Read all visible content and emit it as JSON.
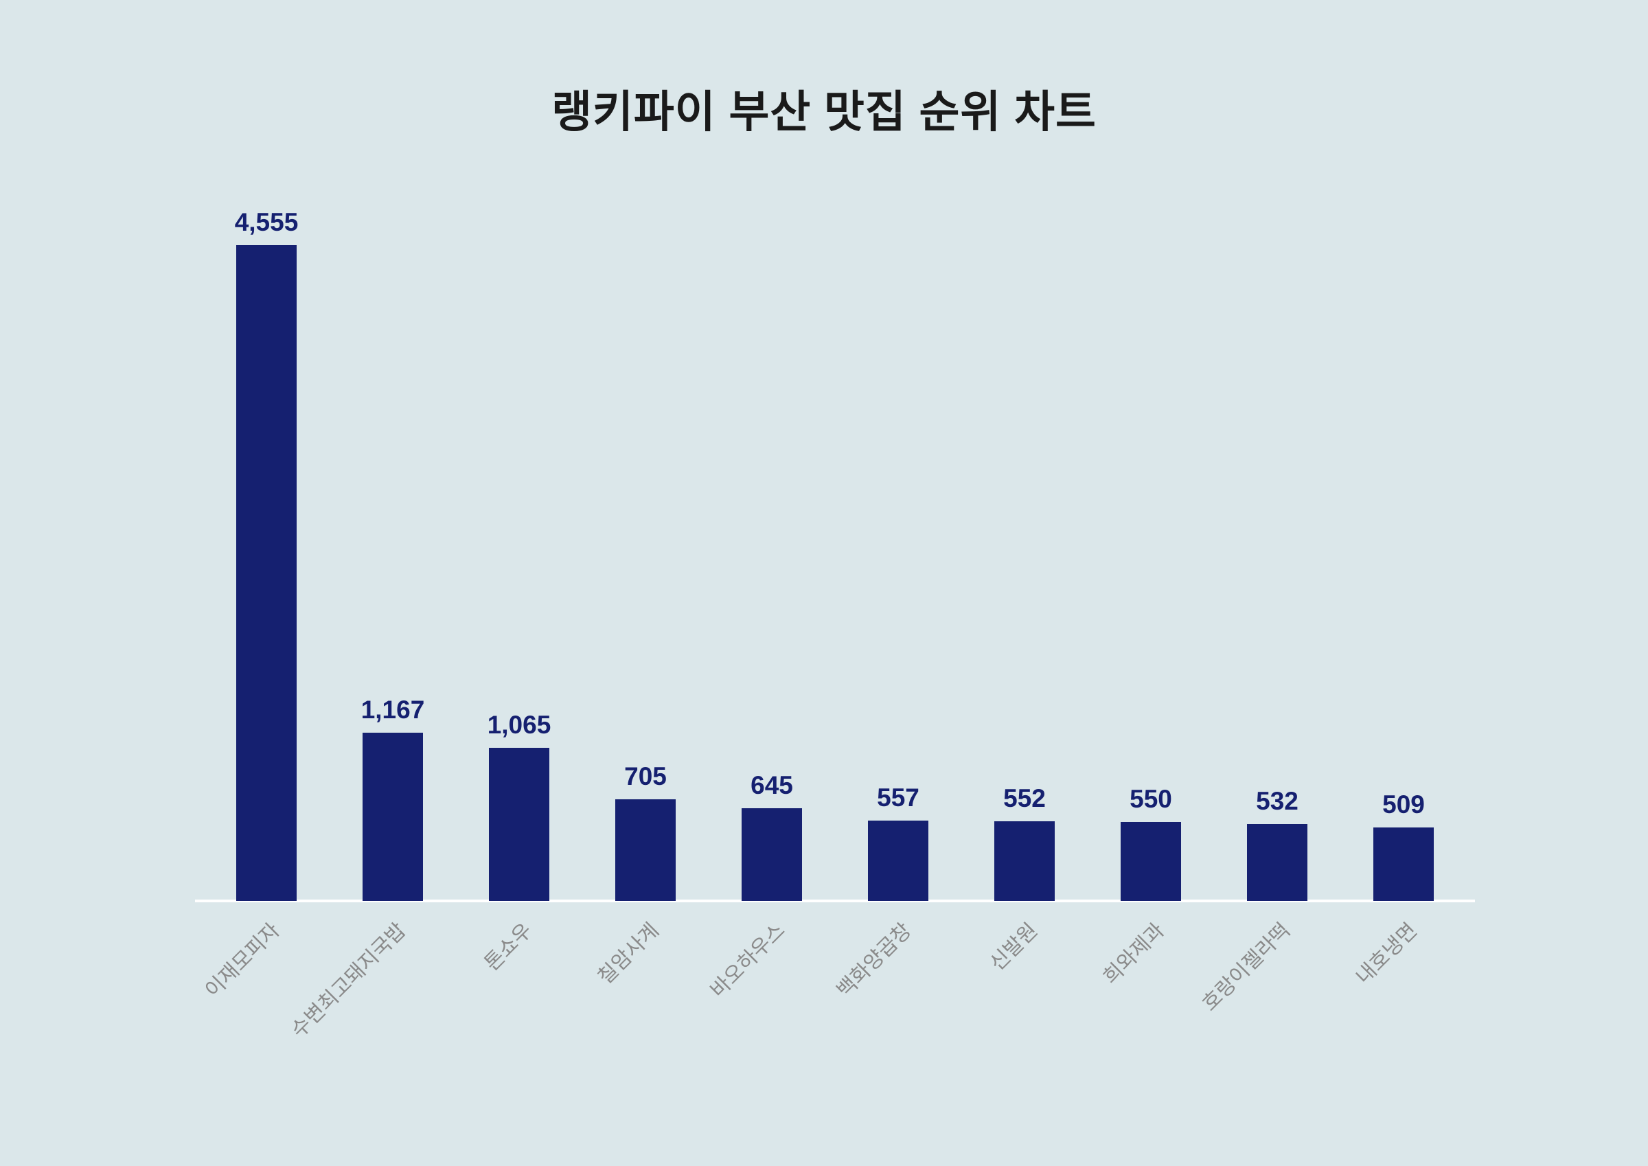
{
  "page": {
    "background_color": "#dbe7ea"
  },
  "chart_data": {
    "type": "bar",
    "title": "랭키파이 부산 맛집 순위 차트",
    "categories": [
      "이재모피자",
      "수변최고돼지국밥",
      "톤쇼우",
      "칠암사계",
      "바오하우스",
      "백화양곱창",
      "신발원",
      "희와제과",
      "호랑이젤라떡",
      "내호냉면"
    ],
    "values": [
      4555,
      1167,
      1065,
      705,
      645,
      557,
      552,
      550,
      532,
      509
    ],
    "value_labels": [
      "4,555",
      "1,167",
      "1,065",
      "705",
      "645",
      "557",
      "552",
      "550",
      "532",
      "509"
    ],
    "xlabel": "",
    "ylabel": "",
    "ylim": [
      0,
      4555
    ],
    "grid": false,
    "legend": false,
    "bar_color": "#152070",
    "value_label_color": "#152070",
    "category_label_color": "#8a8a8a",
    "title_color": "#1a1a1a",
    "axis_line_color": "#ffffff",
    "background_color": "#dbe7ea"
  }
}
